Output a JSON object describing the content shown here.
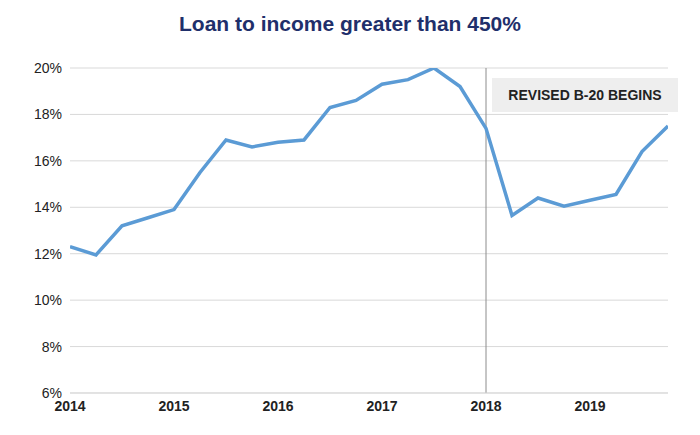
{
  "chart_data": {
    "type": "line",
    "title": "Loan to income greater than 450%",
    "x": [
      2014,
      2014.25,
      2014.5,
      2014.75,
      2015,
      2015.25,
      2015.5,
      2015.75,
      2016,
      2016.25,
      2016.5,
      2016.75,
      2017,
      2017.25,
      2017.5,
      2017.75,
      2018,
      2018.25,
      2018.5,
      2018.75,
      2019,
      2019.25,
      2019.5,
      2019.75
    ],
    "values": [
      12.3,
      11.95,
      13.2,
      13.55,
      13.9,
      15.5,
      16.9,
      16.6,
      16.8,
      16.9,
      18.3,
      18.6,
      19.3,
      19.5,
      20.0,
      19.2,
      17.4,
      13.65,
      14.4,
      14.05,
      14.3,
      14.55,
      16.4,
      17.5
    ],
    "color": "#5b9bd5",
    "xlim": [
      2014,
      2019.75
    ],
    "xticks": [
      2014,
      2015,
      2016,
      2017,
      2018,
      2019
    ],
    "ylim": [
      6,
      20
    ],
    "yticks": [
      {
        "value": 6,
        "label": "6%"
      },
      {
        "value": 8,
        "label": "8%"
      },
      {
        "value": 10,
        "label": "10%"
      },
      {
        "value": 12,
        "label": "12%"
      },
      {
        "value": 14,
        "label": "14%"
      },
      {
        "value": 16,
        "label": "16%"
      },
      {
        "value": 18,
        "label": "18%"
      },
      {
        "value": 20,
        "label": "20%"
      }
    ],
    "grid": true,
    "annotations": [
      {
        "text": "REVISED B-20 BEGINS",
        "x": 2018
      }
    ]
  }
}
